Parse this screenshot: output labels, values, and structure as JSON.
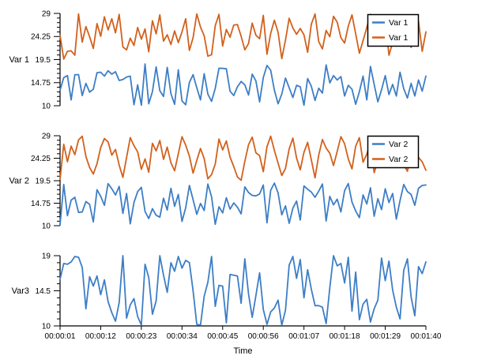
{
  "colors": {
    "blue": "#3D7EC6",
    "orange": "#D2611C",
    "axis": "#000000",
    "text": "#000000",
    "legend_bg": "#ffffff",
    "legend_border": "#000000",
    "background": "#ffffff"
  },
  "xlabel": "Time",
  "x_ticks": {
    "seconds": [
      1,
      12,
      23,
      34,
      45,
      56,
      67,
      78,
      89,
      100
    ],
    "labels": [
      "00:00:01",
      "00:00:12",
      "00:00:23",
      "00:00:34",
      "00:00:45",
      "00:00:56",
      "00:01:07",
      "00:01:18",
      "00:01:29",
      "00:01:40"
    ]
  },
  "chart_data": [
    {
      "type": "line",
      "row_label": "Var 1",
      "xlabel": "",
      "xlim": [
        1,
        100
      ],
      "ylim": [
        10,
        29
      ],
      "yticks": [
        10,
        14.75,
        19.5,
        24.25,
        29
      ],
      "ytick_labels": [
        "10",
        "14.75",
        "19.5",
        "24.25",
        "29"
      ],
      "x_start_seconds": 1,
      "x_step_seconds": 1,
      "n_points": 100,
      "grid": false,
      "legend": {
        "position": "top-right",
        "entries": [
          {
            "label": "Var 1",
            "color": "blue"
          },
          {
            "label": "Var 1",
            "color": "orange"
          }
        ]
      },
      "series": [
        {
          "name": "Var 1",
          "color": "blue",
          "values": [
            13.2,
            15.8,
            16.2,
            11.2,
            16.4,
            16.4,
            12.1,
            14.6,
            12.8,
            13.4,
            16.8,
            16.9,
            16.1,
            17.2,
            16.5,
            17.0,
            15.2,
            15.4,
            15.9,
            16.1,
            10.2,
            14.3,
            10.1,
            18.6,
            10.4,
            12.9,
            18.0,
            13.1,
            11.9,
            17.9,
            12.5,
            10.3,
            17.4,
            11.0,
            10.2,
            14.8,
            16.4,
            13.7,
            11.2,
            16.6,
            12.4,
            10.9,
            13.6,
            17.7,
            17.7,
            17.6,
            13.0,
            12.1,
            13.9,
            15.0,
            14.3,
            12.2,
            16.5,
            15.1,
            10.8,
            15.8,
            18.3,
            17.3,
            13.2,
            10.4,
            12.4,
            15.7,
            13.7,
            11.7,
            14.2,
            13.9,
            10.1,
            15.6,
            14.0,
            11.1,
            13.6,
            12.6,
            18.4,
            14.7,
            16.2,
            15.3,
            16.0,
            12.0,
            14.2,
            13.4,
            10.3,
            12.9,
            16.1,
            11.2,
            18.1,
            14.4,
            10.8,
            13.3,
            16.2,
            12.3,
            14.4,
            12.0,
            16.9,
            13.5,
            11.6,
            14.6,
            12.0,
            15.3,
            13.0,
            16.1
          ]
        },
        {
          "name": "Var 1",
          "color": "orange",
          "values": [
            24.5,
            19.6,
            21.2,
            21.3,
            20.4,
            28.9,
            23.1,
            26.3,
            24.2,
            21.8,
            26.9,
            24.3,
            28.3,
            25.6,
            27.9,
            25.0,
            28.8,
            22.1,
            21.5,
            23.9,
            22.4,
            26.1,
            23.7,
            25.8,
            21.1,
            27.5,
            24.8,
            28.7,
            23.3,
            24.6,
            22.6,
            25.4,
            23.0,
            25.2,
            27.9,
            21.4,
            24.0,
            28.9,
            26.2,
            24.4,
            20.2,
            20.5,
            26.5,
            28.8,
            22.3,
            25.7,
            24.1,
            26.6,
            26.7,
            24.3,
            21.5,
            22.8,
            27.0,
            24.5,
            23.8,
            28.6,
            20.6,
            24.9,
            27.6,
            25.1,
            19.7,
            23.5,
            28.0,
            26.0,
            24.7,
            25.9,
            24.6,
            21.0,
            26.8,
            28.9,
            23.2,
            21.7,
            25.5,
            24.2,
            28.4,
            27.2,
            24.0,
            22.9,
            26.4,
            28.7,
            24.8,
            20.8,
            23.4,
            26.1,
            28.8,
            25.3,
            22.4,
            24.7,
            27.8,
            20.4,
            23.0,
            25.6,
            28.2,
            24.1,
            26.3,
            22.0,
            25.0,
            27.4,
            21.2,
            25.2
          ]
        }
      ]
    },
    {
      "type": "line",
      "row_label": "Var 2",
      "xlabel": "",
      "xlim": [
        1,
        100
      ],
      "ylim": [
        10,
        29
      ],
      "yticks": [
        10,
        14.75,
        19.5,
        24.25,
        29
      ],
      "ytick_labels": [
        "10",
        "14.75",
        "19.5",
        "24.25",
        "29"
      ],
      "x_start_seconds": 1,
      "x_step_seconds": 1,
      "n_points": 100,
      "grid": false,
      "legend": {
        "position": "top-right",
        "entries": [
          {
            "label": "Var 2",
            "color": "blue"
          },
          {
            "label": "Var 2",
            "color": "orange"
          }
        ]
      },
      "series": [
        {
          "name": "Var 2",
          "color": "blue",
          "values": [
            10.2,
            18.7,
            12.1,
            15.4,
            16.0,
            12.8,
            12.9,
            15.1,
            14.5,
            10.8,
            17.6,
            16.2,
            14.3,
            18.9,
            17.8,
            16.5,
            18.3,
            12.6,
            16.8,
            10.4,
            14.9,
            17.2,
            18.1,
            13.0,
            11.5,
            13.6,
            12.2,
            11.8,
            15.8,
            13.3,
            17.9,
            14.1,
            16.6,
            10.9,
            13.8,
            18.5,
            15.5,
            12.4,
            14.7,
            13.2,
            18.8,
            16.1,
            10.3,
            14.0,
            12.7,
            15.9,
            13.5,
            14.8,
            13.9,
            12.5,
            18.2,
            17.0,
            16.4,
            16.3,
            16.7,
            18.6,
            10.6,
            17.5,
            19.0,
            16.9,
            12.3,
            14.2,
            10.5,
            13.7,
            15.2,
            11.2,
            18.4,
            17.7,
            17.1,
            16.0,
            17.3,
            18.8,
            11.0,
            16.2,
            14.4,
            15.6,
            12.9,
            17.4,
            18.9,
            15.0,
            13.1,
            11.7,
            16.5,
            14.6,
            18.0,
            12.0,
            15.7,
            13.4,
            17.8,
            14.9,
            16.8,
            11.4,
            15.3,
            18.7,
            17.2,
            16.6,
            14.3,
            17.9,
            18.5,
            18.6
          ]
        },
        {
          "name": "Var 2",
          "color": "orange",
          "values": [
            19.8,
            27.2,
            23.5,
            26.8,
            25.0,
            28.1,
            28.9,
            24.6,
            22.3,
            20.9,
            23.1,
            26.5,
            28.4,
            27.7,
            24.9,
            26.1,
            22.8,
            20.2,
            24.4,
            28.6,
            26.9,
            25.6,
            21.9,
            24.1,
            21.3,
            27.4,
            25.8,
            28.0,
            24.0,
            26.6,
            23.3,
            21.6,
            25.2,
            28.8,
            27.0,
            24.7,
            21.1,
            23.8,
            26.3,
            24.2,
            19.9,
            20.8,
            23.0,
            28.3,
            26.0,
            27.9,
            24.5,
            22.5,
            20.3,
            19.6,
            23.6,
            27.1,
            28.7,
            25.4,
            24.8,
            21.4,
            26.7,
            28.9,
            25.9,
            23.2,
            20.6,
            22.1,
            26.2,
            28.5,
            24.3,
            21.8,
            25.5,
            27.6,
            23.9,
            20.1,
            24.9,
            28.2,
            26.4,
            25.3,
            22.7,
            25.7,
            28.8,
            27.3,
            24.1,
            22.0,
            26.8,
            28.6,
            23.4,
            25.1,
            27.5,
            21.2,
            23.7,
            26.0,
            28.4,
            25.8,
            27.8,
            24.6,
            26.9,
            22.9,
            21.5,
            25.4,
            27.0,
            24.4,
            23.5,
            21.7
          ]
        }
      ]
    },
    {
      "type": "line",
      "row_label": "Var3",
      "xlabel": "Time",
      "xlim": [
        1,
        100
      ],
      "ylim": [
        10,
        19
      ],
      "yticks": [
        10,
        14.5,
        19
      ],
      "ytick_labels": [
        "10",
        "14.5",
        "19"
      ],
      "x_start_seconds": 1,
      "x_step_seconds": 1,
      "n_points": 100,
      "grid": false,
      "legend": null,
      "series": [
        {
          "name": "Var3",
          "color": "blue",
          "values": [
            16.0,
            18.0,
            17.9,
            18.2,
            18.9,
            18.8,
            17.5,
            12.2,
            16.3,
            15.1,
            16.4,
            14.0,
            15.9,
            13.1,
            11.7,
            10.6,
            13.0,
            19.0,
            11.0,
            12.7,
            13.5,
            11.2,
            10.1,
            17.9,
            16.2,
            11.5,
            13.2,
            19.0,
            16.5,
            14.3,
            18.1,
            17.0,
            18.9,
            17.4,
            18.4,
            18.1,
            14.5,
            10.2,
            10.1,
            13.8,
            15.6,
            18.9,
            12.5,
            15.2,
            15.1,
            10.4,
            16.6,
            16.5,
            16.4,
            12.9,
            18.6,
            14.1,
            11.1,
            13.9,
            16.8,
            12.1,
            10.2,
            11.8,
            12.3,
            13.3,
            10.1,
            12.0,
            17.8,
            18.9,
            16.1,
            18.5,
            13.6,
            17.2,
            14.7,
            12.6,
            12.6,
            12.4,
            10.3,
            14.9,
            19.0,
            17.7,
            18.0,
            15.5,
            18.8,
            11.9,
            16.9,
            10.8,
            12.8,
            13.4,
            10.5,
            12.2,
            13.3,
            18.7,
            15.8,
            18.3,
            14.6,
            12.4,
            10.9,
            17.1,
            18.6,
            13.7,
            11.3,
            17.6,
            16.7,
            18.2
          ]
        }
      ]
    }
  ]
}
